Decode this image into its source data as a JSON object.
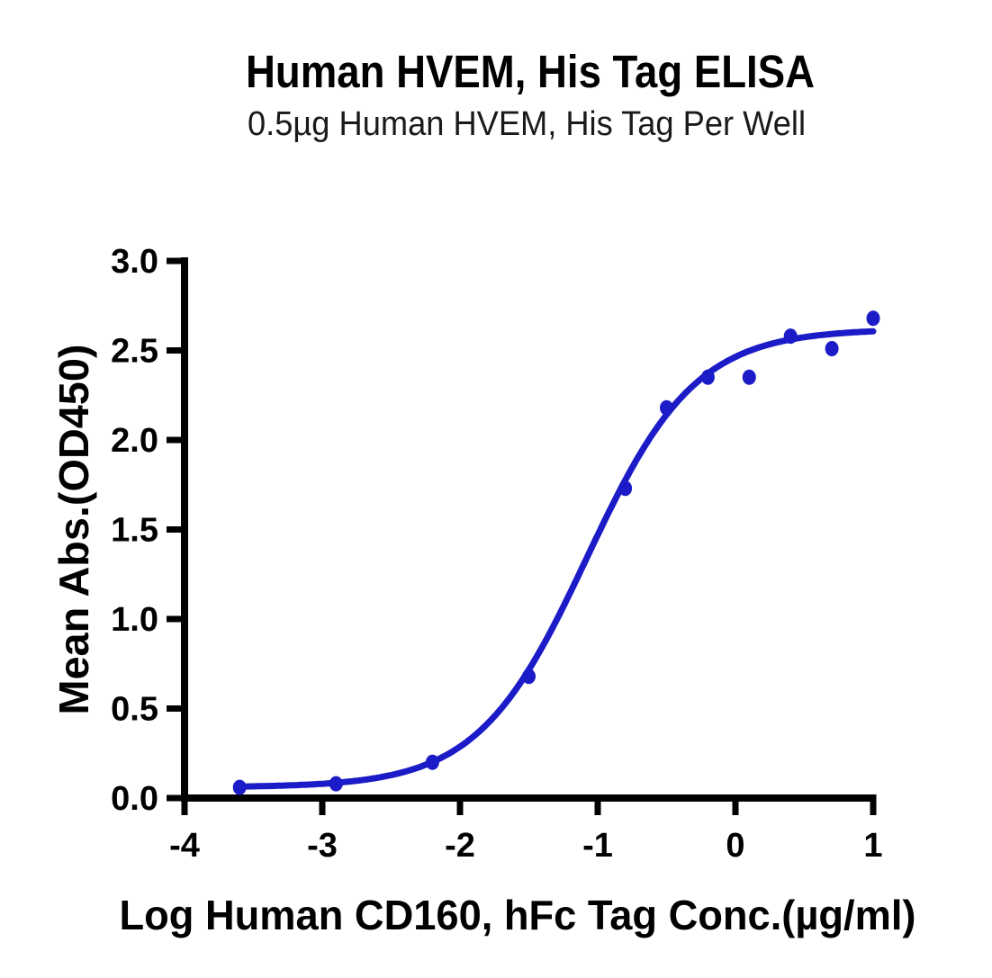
{
  "figure": {
    "title": "Human HVEM, His Tag ELISA",
    "subtitle": "0.5µg Human HVEM, His Tag Per Well"
  },
  "chart_data": {
    "type": "scatter",
    "title": "Human HVEM, His Tag ELISA",
    "subtitle": "0.5µg Human HVEM, His Tag Per Well",
    "xlabel": "Log Human CD160, hFc Tag Conc.(µg/ml)",
    "ylabel": "Mean Abs.(OD450)",
    "xlim": [
      -4,
      1
    ],
    "ylim": [
      0.0,
      3.0
    ],
    "x_ticks": [
      -4,
      -3,
      -2,
      -1,
      0,
      1
    ],
    "y_ticks": [
      0.0,
      0.5,
      1.0,
      1.5,
      2.0,
      2.5,
      3.0
    ],
    "grid": false,
    "legend_position": "none",
    "series": [
      {
        "x": [
          -3.6,
          -2.9,
          -2.2,
          -1.5,
          -0.8,
          -0.5,
          -0.2,
          0.1,
          0.4,
          0.7,
          1.0
        ],
        "y": [
          0.06,
          0.08,
          0.2,
          0.68,
          1.73,
          2.18,
          2.35,
          2.35,
          2.58,
          2.51,
          2.68
        ],
        "marker": "circle",
        "color": "#1B1BC8"
      }
    ],
    "fit_curve": {
      "model": "4PL",
      "bottom": 0.06,
      "top": 2.62,
      "log_ec50": -1.08,
      "hill_slope": 1.1,
      "x_start": -3.6,
      "x_end": 1.0,
      "color": "#1B1BC8"
    },
    "colors": {
      "series_blue": "#1B1BC8",
      "axis_black": "#000000",
      "background": "#FFFFFF"
    }
  }
}
